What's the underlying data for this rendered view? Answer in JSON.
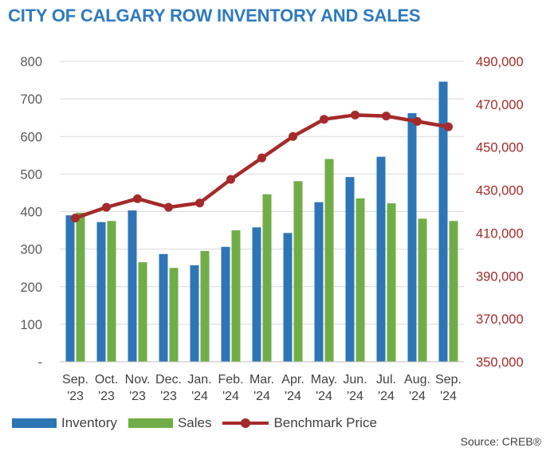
{
  "colors": {
    "title": "#2E7ABF",
    "inventory": "#2E75B6",
    "sales": "#70AD47",
    "benchmark": "#A52A2A",
    "grid": "#D9D9D9",
    "left_axis_text": "#595959",
    "right_axis_text": "#A52A2A"
  },
  "chart_data": {
    "type": "bar",
    "title": "CITY OF CALGARY ROW INVENTORY AND SALES",
    "categories": [
      "Sep.\n'23",
      "Oct.\n'23",
      "Nov.\n'23",
      "Dec.\n'23",
      "Jan.\n'24",
      "Feb.\n'24",
      "Mar.\n'24",
      "Apr.\n'24",
      "May.\n'24",
      "Jun.\n'24",
      "Jul.\n'24",
      "Aug.\n'24",
      "Sep.\n'24"
    ],
    "series": [
      {
        "name": "Inventory",
        "type": "bar",
        "axis": "left",
        "values": [
          390,
          372,
          403,
          287,
          257,
          306,
          358,
          343,
          425,
          492,
          546,
          662,
          746
        ]
      },
      {
        "name": "Sales",
        "type": "bar",
        "axis": "left",
        "values": [
          397,
          375,
          265,
          250,
          295,
          350,
          446,
          481,
          540,
          435,
          422,
          381,
          375
        ]
      },
      {
        "name": "Benchmark Price",
        "type": "line",
        "axis": "right",
        "values": [
          417000,
          422000,
          426000,
          422000,
          424000,
          435000,
          445000,
          455000,
          463000,
          465000,
          464500,
          462000,
          459500
        ]
      }
    ],
    "y_left": {
      "ylim": [
        0,
        800
      ],
      "ticks": [
        "-",
        "100",
        "200",
        "300",
        "400",
        "500",
        "600",
        "700",
        "800"
      ]
    },
    "y_right": {
      "ylim": [
        350000,
        490000
      ],
      "ticks": [
        "350,000",
        "370,000",
        "390,000",
        "410,000",
        "430,000",
        "450,000",
        "470,000",
        "490,000"
      ]
    },
    "grid": true,
    "legend": "bottom",
    "source": "Source: CREB®"
  }
}
